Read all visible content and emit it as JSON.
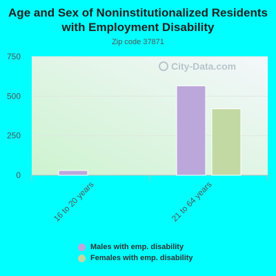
{
  "chart_data": {
    "type": "bar",
    "title": "Age and Sex of Noninstitutionalized Residents with Employment Disability",
    "subtitle": "Zip code 37871",
    "categories": [
      "16 to 20 years",
      "21 to 64 years"
    ],
    "series": [
      {
        "name": "Males with emp. disability",
        "color": "#bca7db",
        "values": [
          30,
          565
        ]
      },
      {
        "name": "Females with emp. disability",
        "color": "#c3d9a4",
        "values": [
          0,
          420
        ]
      }
    ],
    "ylim": [
      0,
      750
    ],
    "yticks": [
      0,
      250,
      500,
      750
    ],
    "legend": "bottom",
    "grid": true
  },
  "watermark": "City-Data.com"
}
